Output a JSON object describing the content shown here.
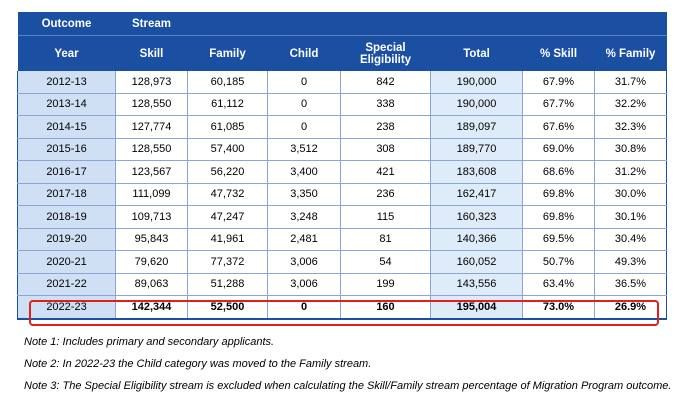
{
  "header": {
    "outcome": "Outcome",
    "stream": "Stream",
    "columns": [
      "Year",
      "Skill",
      "Family",
      "Child",
      "Special Eligibility",
      "Total",
      "% Skill",
      "% Family"
    ]
  },
  "rows": [
    [
      "2012-13",
      "128,973",
      "60,185",
      "0",
      "842",
      "190,000",
      "67.9%",
      "31.7%"
    ],
    [
      "2013-14",
      "128,550",
      "61,112",
      "0",
      "338",
      "190,000",
      "67.7%",
      "32.2%"
    ],
    [
      "2014-15",
      "127,774",
      "61,085",
      "0",
      "238",
      "189,097",
      "67.6%",
      "32.3%"
    ],
    [
      "2015-16",
      "128,550",
      "57,400",
      "3,512",
      "308",
      "189,770",
      "69.0%",
      "30.8%"
    ],
    [
      "2016-17",
      "123,567",
      "56,220",
      "3,400",
      "421",
      "183,608",
      "68.6%",
      "31.2%"
    ],
    [
      "2017-18",
      "111,099",
      "47,732",
      "3,350",
      "236",
      "162,417",
      "69.8%",
      "30.0%"
    ],
    [
      "2018-19",
      "109,713",
      "47,247",
      "3,248",
      "115",
      "160,323",
      "69.8%",
      "30.1%"
    ],
    [
      "2019-20",
      "95,843",
      "41,961",
      "2,481",
      "81",
      "140,366",
      "69.5%",
      "30.4%"
    ],
    [
      "2020-21",
      "79,620",
      "77,372",
      "3,006",
      "54",
      "160,052",
      "50.7%",
      "49.3%"
    ],
    [
      "2021-22",
      "89,063",
      "51,288",
      "3,006",
      "199",
      "143,556",
      "63.4%",
      "36.5%"
    ],
    [
      "2022-23",
      "142,344",
      "52,500",
      "0",
      "160",
      "195,004",
      "73.0%",
      "26.9%"
    ]
  ],
  "notes": [
    "Note 1: Includes primary and secondary applicants.",
    "Note 2: In 2022-23 the Child category was moved to the Family stream.",
    "Note 3: The Special Eligibility stream is excluded when calculating the Skill/Family stream percentage of Migration Program outcome."
  ],
  "highlight_color": "#e0201c",
  "header_color": "#1b4fa2"
}
